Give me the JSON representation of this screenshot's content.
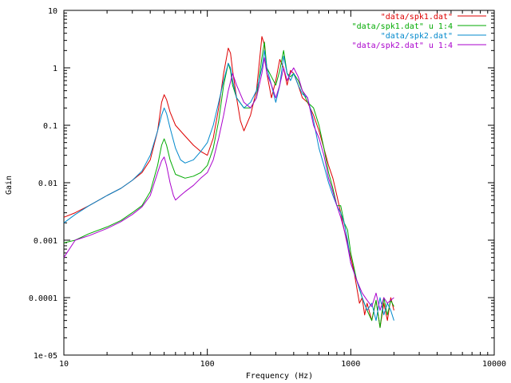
{
  "chart_data": {
    "type": "line",
    "title": "",
    "xlabel": "Frequency (Hz)",
    "ylabel": "Gain",
    "x_scale": "log",
    "y_scale": "log",
    "xlim": [
      10,
      10000
    ],
    "ylim": [
      1e-05,
      10
    ],
    "grid": false,
    "legend_position": "top-right",
    "x_ticks": [
      {
        "value": 10,
        "label": "10"
      },
      {
        "value": 100,
        "label": "100"
      },
      {
        "value": 1000,
        "label": "1000"
      },
      {
        "value": 10000,
        "label": "10000"
      }
    ],
    "y_ticks": [
      {
        "value": 1e-05,
        "label": "1e-05"
      },
      {
        "value": 0.0001,
        "label": "0.0001"
      },
      {
        "value": 0.001,
        "label": "0.001"
      },
      {
        "value": 0.01,
        "label": "0.01"
      },
      {
        "value": 0.1,
        "label": "0.1"
      },
      {
        "value": 1,
        "label": "1"
      },
      {
        "value": 10,
        "label": "10"
      }
    ],
    "series": [
      {
        "name": "\"data/spk1.dat\"",
        "color": "#dd0000",
        "x": [
          10,
          12,
          15,
          20,
          25,
          30,
          35,
          40,
          45,
          48,
          50,
          52,
          55,
          60,
          70,
          80,
          90,
          100,
          110,
          120,
          130,
          140,
          145,
          150,
          160,
          170,
          180,
          200,
          210,
          220,
          230,
          240,
          250,
          260,
          280,
          300,
          320,
          340,
          360,
          380,
          400,
          430,
          460,
          500,
          550,
          600,
          650,
          700,
          750,
          800,
          850,
          900,
          950,
          1000,
          1050,
          1100,
          1150,
          1200,
          1250,
          1300,
          1400,
          1500,
          1600,
          1700,
          1800,
          1900,
          2000
        ],
        "y": [
          0.0025,
          0.003,
          0.004,
          0.006,
          0.008,
          0.011,
          0.015,
          0.025,
          0.08,
          0.25,
          0.34,
          0.28,
          0.17,
          0.1,
          0.065,
          0.045,
          0.035,
          0.03,
          0.06,
          0.2,
          0.8,
          2.2,
          1.8,
          0.9,
          0.3,
          0.12,
          0.08,
          0.15,
          0.25,
          0.4,
          1.2,
          3.5,
          2.5,
          0.8,
          0.3,
          0.6,
          1.4,
          1.0,
          0.5,
          0.9,
          0.8,
          0.5,
          0.3,
          0.25,
          0.15,
          0.08,
          0.04,
          0.02,
          0.012,
          0.006,
          0.003,
          0.0015,
          0.0009,
          0.0005,
          0.0003,
          0.00015,
          8e-05,
          0.0001,
          5e-05,
          8e-05,
          4e-05,
          9e-05,
          3e-05,
          8e-05,
          4e-05,
          0.0001,
          6e-05
        ]
      },
      {
        "name": "\"data/spk1.dat\" u 1:4",
        "color": "#00aa00",
        "x": [
          10,
          12,
          15,
          20,
          25,
          30,
          35,
          40,
          45,
          48,
          50,
          52,
          55,
          60,
          70,
          80,
          90,
          100,
          110,
          120,
          130,
          140,
          145,
          150,
          160,
          180,
          200,
          220,
          240,
          250,
          260,
          280,
          300,
          320,
          340,
          360,
          380,
          400,
          430,
          460,
          500,
          550,
          600,
          650,
          700,
          750,
          800,
          850,
          900,
          950,
          1000,
          1100,
          1200,
          1300,
          1400,
          1500,
          1600,
          1700,
          1800,
          1900,
          2000
        ],
        "y": [
          0.0009,
          0.001,
          0.0013,
          0.0017,
          0.0022,
          0.003,
          0.004,
          0.007,
          0.02,
          0.045,
          0.058,
          0.045,
          0.025,
          0.014,
          0.012,
          0.013,
          0.015,
          0.02,
          0.04,
          0.12,
          0.5,
          1.2,
          0.9,
          0.5,
          0.3,
          0.2,
          0.2,
          0.3,
          1.5,
          2.8,
          1.0,
          0.7,
          0.5,
          0.9,
          2.0,
          0.8,
          0.7,
          0.8,
          0.6,
          0.4,
          0.25,
          0.2,
          0.1,
          0.04,
          0.015,
          0.008,
          0.004,
          0.004,
          0.002,
          0.0015,
          0.0006,
          0.0002,
          0.0001,
          6e-05,
          4e-05,
          9e-05,
          3e-05,
          0.0001,
          5e-05,
          9e-05,
          7e-05
        ]
      },
      {
        "name": "\"data/spk2.dat\"",
        "color": "#0088cc",
        "x": [
          10,
          12,
          15,
          20,
          25,
          30,
          35,
          40,
          45,
          48,
          50,
          52,
          55,
          60,
          65,
          70,
          80,
          90,
          100,
          110,
          120,
          130,
          140,
          145,
          150,
          160,
          180,
          200,
          220,
          240,
          250,
          260,
          280,
          300,
          320,
          340,
          360,
          380,
          400,
          430,
          460,
          500,
          550,
          600,
          650,
          700,
          750,
          800,
          850,
          900,
          950,
          1000,
          1100,
          1200,
          1300,
          1400,
          1500,
          1600,
          1700,
          1800,
          1900,
          2000
        ],
        "y": [
          0.002,
          0.0028,
          0.004,
          0.006,
          0.008,
          0.011,
          0.016,
          0.03,
          0.08,
          0.15,
          0.2,
          0.16,
          0.09,
          0.04,
          0.025,
          0.022,
          0.025,
          0.035,
          0.05,
          0.1,
          0.25,
          0.6,
          1.2,
          1.0,
          0.6,
          0.3,
          0.2,
          0.25,
          0.4,
          1.0,
          2.0,
          1.0,
          0.5,
          0.25,
          0.5,
          1.6,
          0.8,
          0.6,
          0.8,
          0.5,
          0.35,
          0.3,
          0.12,
          0.04,
          0.02,
          0.01,
          0.006,
          0.004,
          0.003,
          0.002,
          0.001,
          0.0004,
          0.0002,
          0.0001,
          6e-05,
          8e-05,
          4e-05,
          0.0001,
          5e-05,
          8e-05,
          6e-05,
          4e-05
        ]
      },
      {
        "name": "\"data/spk2.dat\" u 1:4",
        "color": "#aa00cc",
        "x": [
          10,
          12,
          15,
          20,
          25,
          30,
          35,
          40,
          45,
          48,
          50,
          52,
          55,
          58,
          60,
          65,
          70,
          80,
          90,
          100,
          110,
          120,
          130,
          140,
          150,
          160,
          180,
          200,
          220,
          240,
          250,
          260,
          280,
          300,
          320,
          340,
          360,
          380,
          400,
          430,
          460,
          500,
          550,
          600,
          650,
          700,
          750,
          800,
          850,
          900,
          950,
          1000,
          1100,
          1200,
          1300,
          1400,
          1500,
          1600,
          1700,
          1800,
          1900,
          2000
        ],
        "y": [
          0.0005,
          0.001,
          0.0012,
          0.0016,
          0.0021,
          0.0028,
          0.0038,
          0.006,
          0.015,
          0.024,
          0.028,
          0.02,
          0.01,
          0.006,
          0.005,
          0.006,
          0.007,
          0.009,
          0.012,
          0.015,
          0.025,
          0.06,
          0.15,
          0.4,
          0.8,
          0.5,
          0.25,
          0.2,
          0.3,
          0.8,
          1.5,
          0.8,
          0.5,
          0.3,
          0.5,
          1.0,
          0.6,
          0.8,
          1.0,
          0.7,
          0.4,
          0.3,
          0.1,
          0.06,
          0.03,
          0.012,
          0.007,
          0.004,
          0.0025,
          0.0015,
          0.0008,
          0.0004,
          0.0002,
          0.00012,
          9e-05,
          7e-05,
          0.00012,
          6e-05,
          0.0001,
          8e-05,
          9e-05,
          0.0001
        ]
      }
    ]
  }
}
